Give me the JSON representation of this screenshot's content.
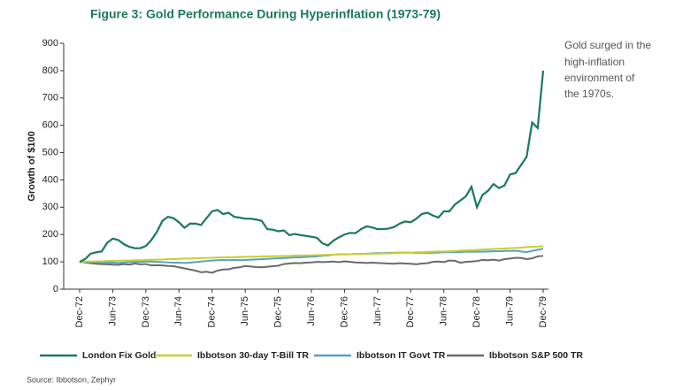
{
  "chart_data": {
    "type": "line",
    "title": "Figure 3: Gold Performance During Hyperinflation (1973-79)",
    "ylabel": "Growth of $100",
    "annotation": [
      "Gold surged in the",
      "high-inflation",
      "environment of",
      "the 1970s."
    ],
    "source": "Source: Ibbotson, Zephyr",
    "ylim": [
      0,
      900
    ],
    "yticks": [
      0,
      100,
      200,
      300,
      400,
      500,
      600,
      700,
      800,
      900
    ],
    "categories": [
      "Dec-72",
      null,
      null,
      null,
      null,
      null,
      "Jun-73",
      null,
      null,
      null,
      null,
      null,
      "Dec-73",
      null,
      null,
      null,
      null,
      null,
      "Jun-74",
      null,
      null,
      null,
      null,
      null,
      "Dec-74",
      null,
      null,
      null,
      null,
      null,
      "Jun-75",
      null,
      null,
      null,
      null,
      null,
      "Dec-75",
      null,
      null,
      null,
      null,
      null,
      "Jun-76",
      null,
      null,
      null,
      null,
      null,
      "Dec-76",
      null,
      null,
      null,
      null,
      null,
      "Jun-77",
      null,
      null,
      null,
      null,
      null,
      "Dec-77",
      null,
      null,
      null,
      null,
      null,
      "Jun-78",
      null,
      null,
      null,
      null,
      null,
      "Dec-78",
      null,
      null,
      null,
      null,
      null,
      "Jun-79",
      null,
      null,
      null,
      null,
      null,
      "Dec-79"
    ],
    "series": [
      {
        "name": "London Fix Gold",
        "color": "#1a7a5a",
        "values": [
          100,
          110,
          130,
          135,
          138,
          170,
          185,
          180,
          165,
          155,
          150,
          150,
          158,
          180,
          210,
          250,
          265,
          260,
          245,
          225,
          240,
          240,
          235,
          260,
          285,
          290,
          275,
          280,
          265,
          262,
          258,
          258,
          255,
          250,
          220,
          218,
          212,
          215,
          198,
          202,
          198,
          195,
          192,
          188,
          168,
          160,
          178,
          190,
          200,
          206,
          205,
          220,
          230,
          226,
          220,
          220,
          222,
          228,
          240,
          248,
          245,
          258,
          275,
          280,
          270,
          262,
          285,
          285,
          310,
          325,
          340,
          375,
          300,
          345,
          360,
          385,
          370,
          380,
          420,
          425,
          455,
          485,
          610,
          590,
          800
        ]
      },
      {
        "name": "Ibbotson 30-day T-Bill TR",
        "color": "#c5d12b",
        "values": [
          100,
          101,
          101,
          102,
          102,
          103,
          104,
          104,
          105,
          105,
          106,
          106,
          107,
          108,
          108,
          109,
          110,
          110,
          111,
          112,
          112,
          113,
          114,
          114,
          115,
          116,
          116,
          117,
          117,
          118,
          118,
          119,
          119,
          120,
          120,
          121,
          121,
          122,
          122,
          123,
          123,
          124,
          124,
          125,
          125,
          126,
          126,
          127,
          127,
          128,
          128,
          129,
          129,
          130,
          130,
          131,
          131,
          132,
          133,
          133,
          134,
          135,
          135,
          136,
          137,
          138,
          138,
          139,
          140,
          141,
          142,
          143,
          144,
          145,
          146,
          147,
          148,
          149,
          150,
          151,
          152,
          154,
          155,
          156,
          158
        ]
      },
      {
        "name": "Ibbotson IT Govt TR",
        "color": "#5b9fc9",
        "values": [
          100,
          100,
          99,
          99,
          98,
          98,
          97,
          96,
          98,
          99,
          100,
          100,
          101,
          101,
          100,
          99,
          98,
          97,
          97,
          96,
          97,
          99,
          101,
          103,
          105,
          106,
          107,
          106,
          107,
          106,
          107,
          108,
          109,
          110,
          111,
          112,
          113,
          114,
          115,
          116,
          116,
          118,
          119,
          120,
          122,
          124,
          126,
          128,
          128,
          128,
          129,
          129,
          130,
          131,
          132,
          132,
          133,
          133,
          134,
          134,
          134,
          133,
          133,
          133,
          133,
          134,
          135,
          136,
          136,
          136,
          137,
          137,
          137,
          137,
          138,
          139,
          139,
          140,
          140,
          141,
          138,
          136,
          140,
          144,
          148
        ]
      },
      {
        "name": "Ibbotson S&P 500 TR",
        "color": "#6a6a6a",
        "values": [
          100,
          98,
          95,
          93,
          92,
          91,
          90,
          89,
          92,
          90,
          94,
          91,
          92,
          87,
          88,
          87,
          85,
          84,
          80,
          76,
          72,
          68,
          62,
          64,
          60,
          68,
          72,
          73,
          78,
          80,
          85,
          83,
          81,
          80,
          82,
          84,
          86,
          92,
          94,
          96,
          95,
          97,
          98,
          100,
          99,
          100,
          101,
          99,
          102,
          100,
          98,
          97,
          96,
          97,
          96,
          95,
          94,
          93,
          95,
          94,
          93,
          91,
          94,
          95,
          100,
          101,
          99,
          105,
          104,
          97,
          100,
          101,
          103,
          107,
          106,
          108,
          105,
          110,
          112,
          115,
          114,
          110,
          113,
          120,
          122
        ]
      }
    ]
  }
}
